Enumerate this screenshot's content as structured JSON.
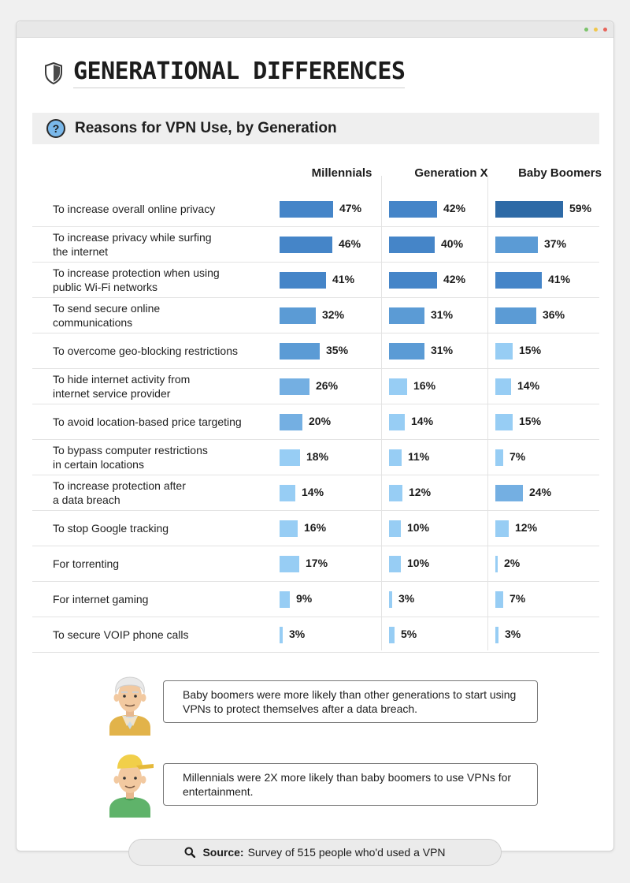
{
  "header": {
    "title": "GENERATIONAL DIFFERENCES"
  },
  "subheader": {
    "icon_text": "?",
    "title": "Reasons for VPN Use, by Generation"
  },
  "chart_data": {
    "type": "bar",
    "title": "Reasons for VPN Use, by Generation",
    "unit": "%",
    "xlim": [
      0,
      100
    ],
    "categories": [
      "To increase overall online privacy",
      "To increase privacy while surfing the internet",
      "To increase protection when using public Wi-Fi networks",
      "To send secure online communications",
      "To overcome geo-blocking restrictions",
      "To hide internet activity from internet service provider",
      "To avoid location-based price targeting",
      "To bypass computer restrictions in certain locations",
      "To increase protection after a data breach",
      "To stop Google tracking",
      "For torrenting",
      "For internet gaming",
      "To secure VOIP phone calls"
    ],
    "series": [
      {
        "name": "Millennials",
        "values": [
          47,
          46,
          41,
          32,
          35,
          26,
          20,
          18,
          14,
          16,
          17,
          9,
          3
        ]
      },
      {
        "name": "Generation X",
        "values": [
          42,
          40,
          42,
          31,
          31,
          16,
          14,
          11,
          12,
          10,
          10,
          3,
          5
        ]
      },
      {
        "name": "Baby Boomers",
        "values": [
          59,
          37,
          41,
          36,
          15,
          14,
          15,
          7,
          24,
          12,
          2,
          7,
          3
        ]
      }
    ]
  },
  "callouts": [
    {
      "avatar": "baby-boomer-avatar",
      "text": "Baby boomers were more likely than other generations to start using VPNs to protect themselves after a data breach."
    },
    {
      "avatar": "millennial-avatar",
      "text": "Millennials were 2X more likely than baby boomers to use VPNs for entertainment."
    }
  ],
  "source": {
    "label": "Source:",
    "text": "Survey of 515 people who'd used a VPN"
  },
  "colors": {
    "titlebar_dots": [
      "#7cc36b",
      "#f0c64a",
      "#e8645a"
    ],
    "shield": "#444444",
    "question": "#7ab8ea"
  },
  "labels_display": [
    [
      "To increase overall online privacy"
    ],
    [
      "To increase privacy while surfing",
      "the internet"
    ],
    [
      "To increase protection when using",
      "public Wi-Fi networks"
    ],
    [
      "To send secure online",
      "communications"
    ],
    [
      "To overcome geo-blocking restrictions"
    ],
    [
      "To hide internet activity from",
      "internet service provider"
    ],
    [
      "To avoid location-based price targeting"
    ],
    [
      "To bypass computer restrictions",
      "in certain locations"
    ],
    [
      "To increase protection after",
      "a data breach"
    ],
    [
      "To stop Google tracking"
    ],
    [
      "For torrenting"
    ],
    [
      "For internet gaming"
    ],
    [
      "To secure VOIP phone calls"
    ]
  ]
}
